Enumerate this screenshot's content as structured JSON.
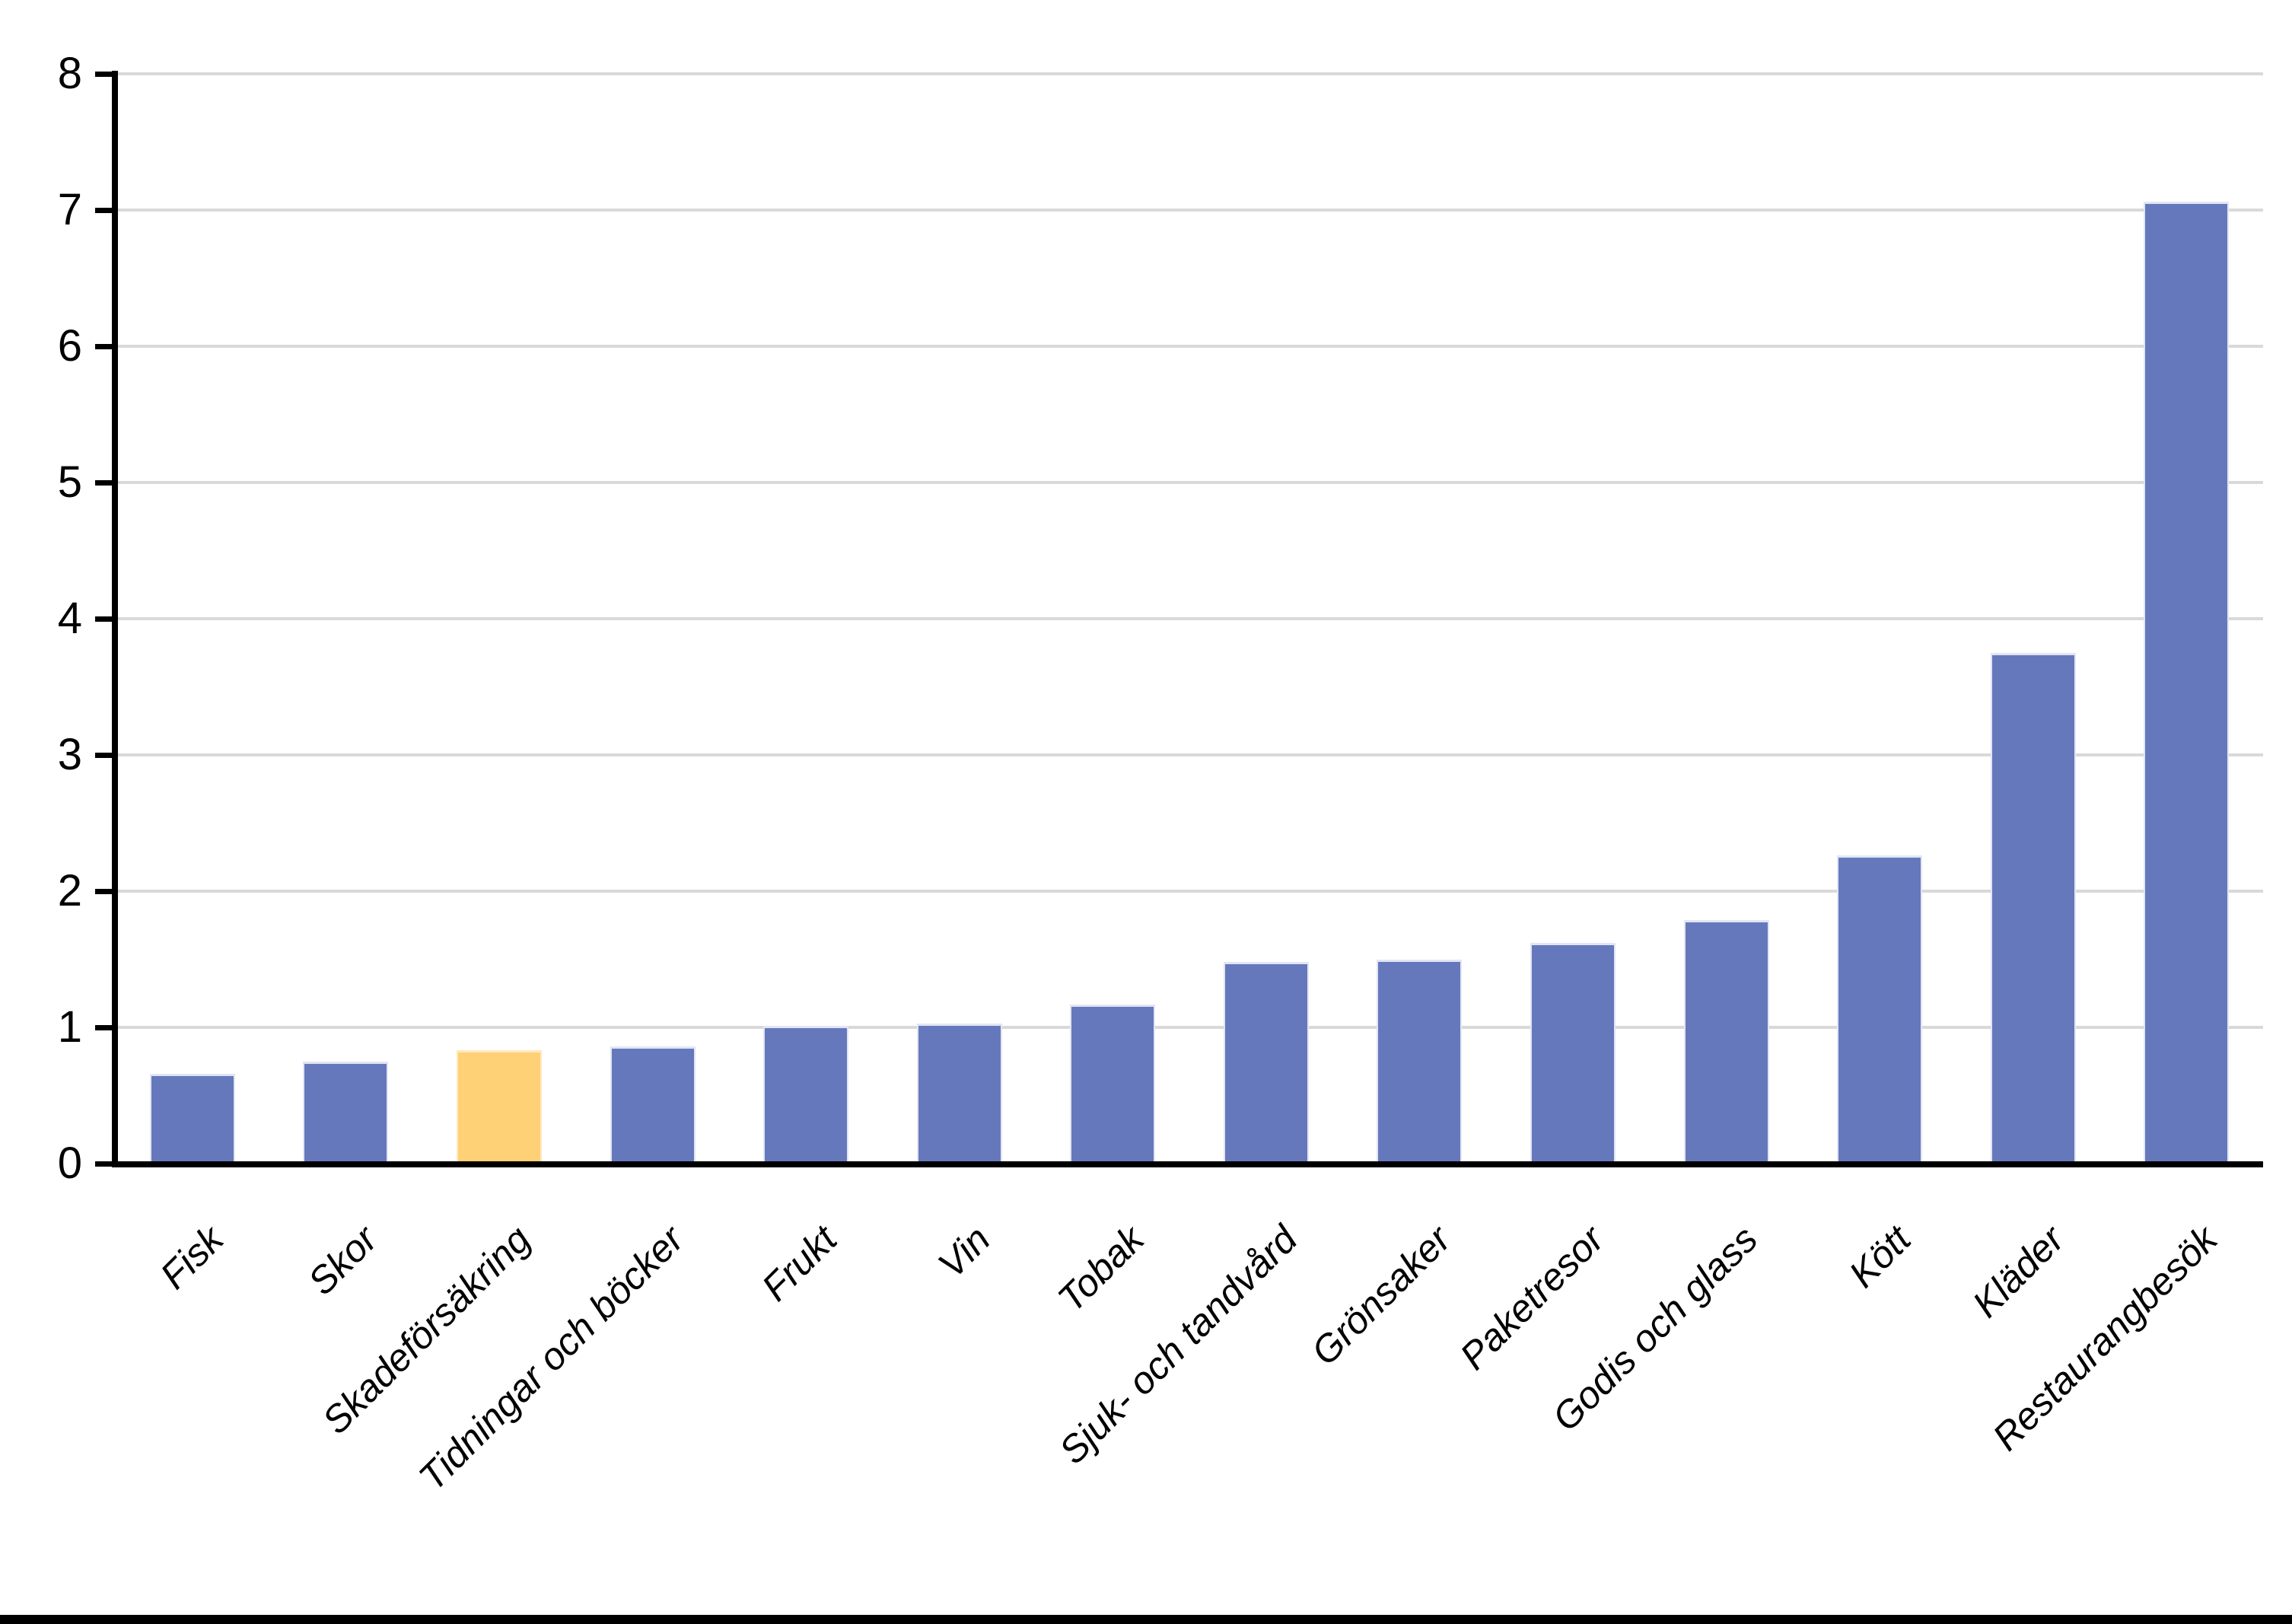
{
  "chart_data": {
    "type": "bar",
    "title": "",
    "xlabel": "",
    "ylabel": "",
    "categories": [
      "Fisk",
      "Skor",
      "Skadeförsäkring",
      "Tidningar och böcker",
      "Frukt",
      "Vin",
      "Tobak",
      "Sjuk- och tandvård",
      "Grönsaker",
      "Paketresor",
      "Godis och glass",
      "Kött",
      "Kläder",
      "Restaurangbesök"
    ],
    "values": [
      0.66,
      0.75,
      0.83,
      0.86,
      1.01,
      1.03,
      1.17,
      1.48,
      1.5,
      1.62,
      1.79,
      2.26,
      3.75,
      7.06
    ],
    "highlight_index": 2,
    "ylim": [
      0,
      8
    ],
    "ytick_labels": [
      "0",
      "1",
      "2",
      "3",
      "4",
      "5",
      "6",
      "7",
      "8"
    ],
    "grid": true,
    "legend": "none",
    "x_label_rotation_deg": -45,
    "colors": {
      "bar": "#6678BC",
      "bar_edge": "#E2E5F4",
      "highlight": "#FFD176",
      "highlight_edge": "#FFE8BE",
      "gridline": "#D9D9D9",
      "axis": "#000000",
      "tick_text": "#000000"
    }
  },
  "page": {
    "bottom_divider_color": "#000000"
  }
}
